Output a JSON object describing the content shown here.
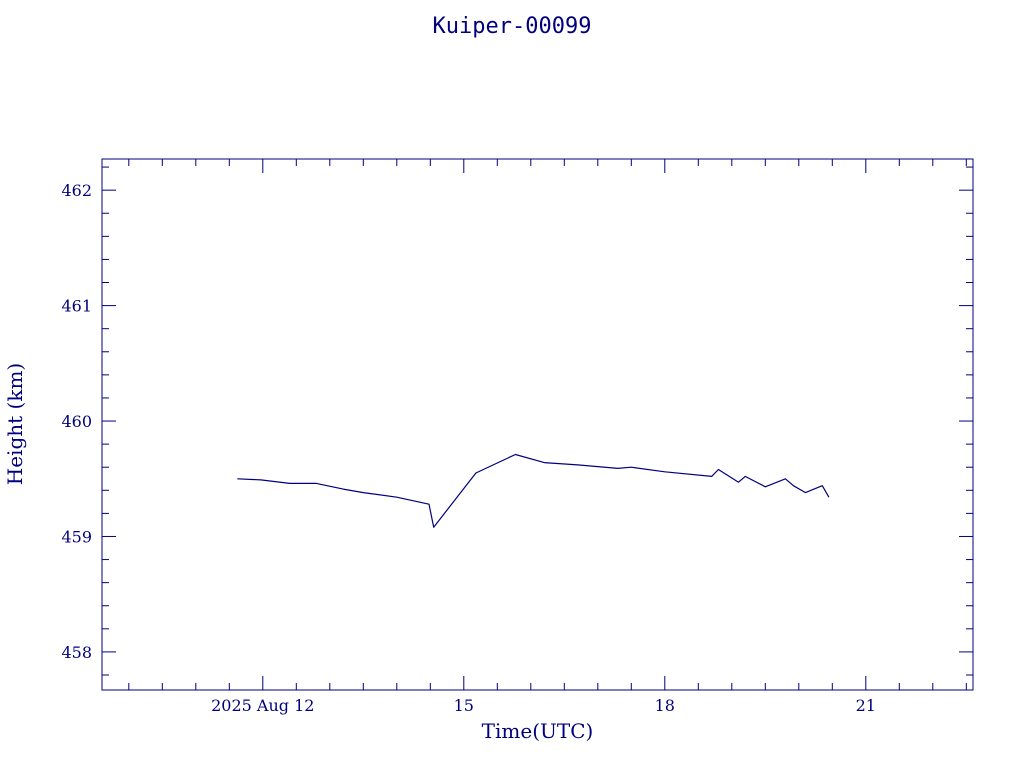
{
  "colors": {
    "ink": "#00007f",
    "background": "#ffffff"
  },
  "chart_data": {
    "type": "line",
    "title": "Kuiper-00099",
    "xlabel": "Time(UTC)",
    "ylabel": "Height (km)",
    "x_ticks": [
      {
        "value": 12,
        "label": "2025 Aug 12"
      },
      {
        "value": 15,
        "label": "15"
      },
      {
        "value": 18,
        "label": "18"
      },
      {
        "value": 21,
        "label": "21"
      }
    ],
    "y_ticks": [
      {
        "value": 458,
        "label": "458"
      },
      {
        "value": 459,
        "label": "459"
      },
      {
        "value": 460,
        "label": "460"
      },
      {
        "value": 461,
        "label": "461"
      },
      {
        "value": 462,
        "label": "462"
      }
    ],
    "xlim": [
      9.6,
      22.6
    ],
    "ylim": [
      457.67,
      462.27
    ],
    "x_minor_step": 0.5,
    "y_minor_step": 0.2,
    "grid": false,
    "series": [
      {
        "x": [
          11.62,
          11.97,
          12.4,
          12.8,
          13.2,
          13.5,
          14.0,
          14.48,
          14.55,
          15.18,
          15.77,
          16.2,
          16.7,
          17.3,
          17.5,
          18.0,
          18.7,
          18.8,
          19.1,
          19.2,
          19.5,
          19.8,
          19.92,
          20.1,
          20.35,
          20.45
        ],
        "y": [
          459.5,
          459.49,
          459.46,
          459.46,
          459.41,
          459.38,
          459.34,
          459.28,
          459.08,
          459.55,
          459.71,
          459.64,
          459.62,
          459.59,
          459.6,
          459.56,
          459.52,
          459.58,
          459.47,
          459.52,
          459.43,
          459.5,
          459.44,
          459.38,
          459.44,
          459.34
        ]
      }
    ]
  }
}
